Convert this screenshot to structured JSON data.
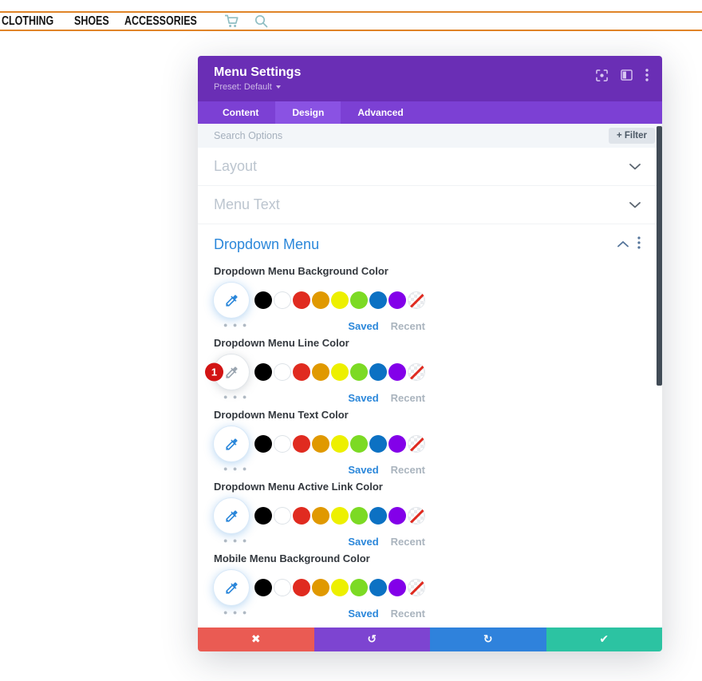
{
  "nav": {
    "items": [
      "CLOTHING",
      "SHOES",
      "ACCESSORIES"
    ],
    "icons": [
      "cart-icon",
      "search-icon"
    ],
    "accent_border_color": "#E08428",
    "icon_color": "#8FBEC3"
  },
  "modal": {
    "title": "Menu Settings",
    "preset_label": "Preset: Default",
    "header_icons": [
      "expand-modal-icon",
      "panel-layout-icon",
      "more-options-icon"
    ],
    "tabs": [
      {
        "label": "Content",
        "active": false
      },
      {
        "label": "Design",
        "active": true
      },
      {
        "label": "Advanced",
        "active": false
      }
    ],
    "search_placeholder": "Search Options",
    "filter_button_label": "+ Filter",
    "sections": [
      {
        "label": "Layout",
        "state": "collapsed"
      },
      {
        "label": "Menu Text",
        "state": "collapsed"
      },
      {
        "label": "Dropdown Menu",
        "state": "expanded"
      }
    ],
    "color_fields": [
      {
        "label": "Dropdown Menu Background Color",
        "eyedropper": "blue",
        "badge": null
      },
      {
        "label": "Dropdown Menu Line Color",
        "eyedropper": "gray",
        "badge": "1"
      },
      {
        "label": "Dropdown Menu Text Color",
        "eyedropper": "blue",
        "badge": null
      },
      {
        "label": "Dropdown Menu Active Link Color",
        "eyedropper": "blue",
        "badge": null
      },
      {
        "label": "Mobile Menu Background Color",
        "eyedropper": "blue",
        "badge": null
      }
    ],
    "swatch_colors": [
      "#000000",
      "#FFFFFF",
      "#E02B20",
      "#E09900",
      "#EDF000",
      "#7CDA24",
      "#0C71C3",
      "#8300E9"
    ],
    "saved_label": "Saved",
    "recent_label": "Recent",
    "footer_buttons": [
      {
        "name": "discard",
        "glyph": "✖",
        "color": "#EA5B53"
      },
      {
        "name": "undo",
        "glyph": "↺",
        "color": "#7D44D1"
      },
      {
        "name": "redo",
        "glyph": "↻",
        "color": "#2F82DC"
      },
      {
        "name": "save",
        "glyph": "✔",
        "color": "#2CC3A2"
      }
    ],
    "colors": {
      "header_bg": "#6A2EB5",
      "tab_bar_bg": "#7C40D4",
      "active_tab_bg": "#8A52E3",
      "accent_blue": "#2B87DA",
      "badge_red": "#D21414",
      "scrollbar": "#414B56"
    }
  }
}
